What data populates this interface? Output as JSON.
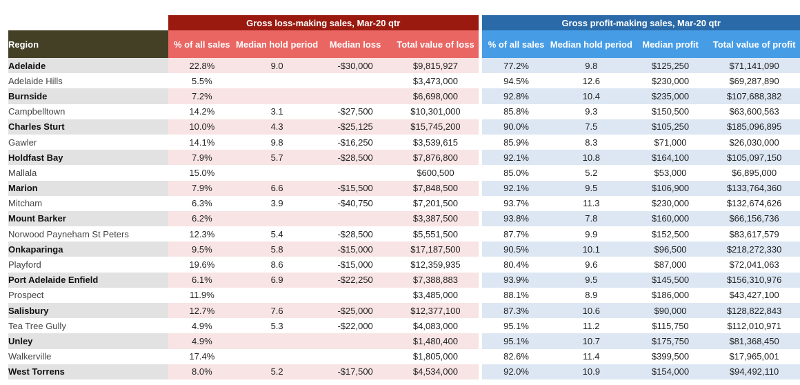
{
  "groups": {
    "loss": "Gross loss-making sales, Mar-20 qtr",
    "profit": "Gross profit-making sales, Mar-20 qtr"
  },
  "headers": {
    "region": "Region",
    "loss": [
      "% of all sales",
      "Median hold period",
      "Median loss",
      "Total value of loss"
    ],
    "profit": [
      "% of all sales",
      "Median hold period",
      "Median profit",
      "Total value of profit"
    ]
  },
  "rows": [
    {
      "region": "Adelaide",
      "loss": [
        "22.8%",
        "9.0",
        "-$30,000",
        "$9,815,927"
      ],
      "profit": [
        "77.2%",
        "9.8",
        "$125,250",
        "$71,141,090"
      ]
    },
    {
      "region": "Adelaide Hills",
      "loss": [
        "5.5%",
        "",
        "",
        "$3,473,000"
      ],
      "profit": [
        "94.5%",
        "12.6",
        "$230,000",
        "$69,287,890"
      ]
    },
    {
      "region": "Burnside",
      "loss": [
        "7.2%",
        "",
        "",
        "$6,698,000"
      ],
      "profit": [
        "92.8%",
        "10.4",
        "$235,000",
        "$107,688,382"
      ]
    },
    {
      "region": "Campbelltown",
      "loss": [
        "14.2%",
        "3.1",
        "-$27,500",
        "$10,301,000"
      ],
      "profit": [
        "85.8%",
        "9.3",
        "$150,500",
        "$63,600,563"
      ]
    },
    {
      "region": "Charles Sturt",
      "loss": [
        "10.0%",
        "4.3",
        "-$25,125",
        "$15,745,200"
      ],
      "profit": [
        "90.0%",
        "7.5",
        "$105,250",
        "$185,096,895"
      ]
    },
    {
      "region": "Gawler",
      "loss": [
        "14.1%",
        "9.8",
        "-$16,250",
        "$3,539,615"
      ],
      "profit": [
        "85.9%",
        "8.3",
        "$71,000",
        "$26,030,000"
      ]
    },
    {
      "region": "Holdfast Bay",
      "loss": [
        "7.9%",
        "5.7",
        "-$28,500",
        "$7,876,800"
      ],
      "profit": [
        "92.1%",
        "10.8",
        "$164,100",
        "$105,097,150"
      ]
    },
    {
      "region": "Mallala",
      "loss": [
        "15.0%",
        "",
        "",
        "$600,500"
      ],
      "profit": [
        "85.0%",
        "5.2",
        "$53,000",
        "$6,895,000"
      ]
    },
    {
      "region": "Marion",
      "loss": [
        "7.9%",
        "6.6",
        "-$15,500",
        "$7,848,500"
      ],
      "profit": [
        "92.1%",
        "9.5",
        "$106,900",
        "$133,764,360"
      ]
    },
    {
      "region": "Mitcham",
      "loss": [
        "6.3%",
        "3.9",
        "-$40,750",
        "$7,201,500"
      ],
      "profit": [
        "93.7%",
        "11.3",
        "$230,000",
        "$132,674,626"
      ]
    },
    {
      "region": "Mount Barker",
      "loss": [
        "6.2%",
        "",
        "",
        "$3,387,500"
      ],
      "profit": [
        "93.8%",
        "7.8",
        "$160,000",
        "$66,156,736"
      ]
    },
    {
      "region": "Norwood Payneham St Peters",
      "loss": [
        "12.3%",
        "5.4",
        "-$28,500",
        "$5,551,500"
      ],
      "profit": [
        "87.7%",
        "9.9",
        "$152,500",
        "$83,617,579"
      ]
    },
    {
      "region": "Onkaparinga",
      "loss": [
        "9.5%",
        "5.8",
        "-$15,000",
        "$17,187,500"
      ],
      "profit": [
        "90.5%",
        "10.1",
        "$96,500",
        "$218,272,330"
      ]
    },
    {
      "region": "Playford",
      "loss": [
        "19.6%",
        "8.6",
        "-$15,000",
        "$12,359,935"
      ],
      "profit": [
        "80.4%",
        "9.6",
        "$87,000",
        "$72,041,063"
      ]
    },
    {
      "region": "Port Adelaide Enfield",
      "loss": [
        "6.1%",
        "6.9",
        "-$22,250",
        "$7,388,883"
      ],
      "profit": [
        "93.9%",
        "9.5",
        "$145,500",
        "$156,310,976"
      ]
    },
    {
      "region": "Prospect",
      "loss": [
        "11.9%",
        "",
        "",
        "$3,485,000"
      ],
      "profit": [
        "88.1%",
        "8.9",
        "$186,000",
        "$43,427,100"
      ]
    },
    {
      "region": "Salisbury",
      "loss": [
        "12.7%",
        "7.6",
        "-$25,000",
        "$12,377,100"
      ],
      "profit": [
        "87.3%",
        "10.6",
        "$90,000",
        "$128,822,843"
      ]
    },
    {
      "region": "Tea Tree Gully",
      "loss": [
        "4.9%",
        "5.3",
        "-$22,000",
        "$4,083,000"
      ],
      "profit": [
        "95.1%",
        "11.2",
        "$115,750",
        "$112,010,971"
      ]
    },
    {
      "region": "Unley",
      "loss": [
        "4.9%",
        "",
        "",
        "$1,480,400"
      ],
      "profit": [
        "95.1%",
        "10.7",
        "$175,750",
        "$81,368,450"
      ]
    },
    {
      "region": "Walkerville",
      "loss": [
        "17.4%",
        "",
        "",
        "$1,805,000"
      ],
      "profit": [
        "82.6%",
        "11.4",
        "$399,500",
        "$17,965,001"
      ]
    },
    {
      "region": "West Torrens",
      "loss": [
        "8.0%",
        "5.2",
        "-$17,500",
        "$4,534,000"
      ],
      "profit": [
        "92.0%",
        "10.9",
        "$154,000",
        "$94,492,110"
      ]
    }
  ]
}
